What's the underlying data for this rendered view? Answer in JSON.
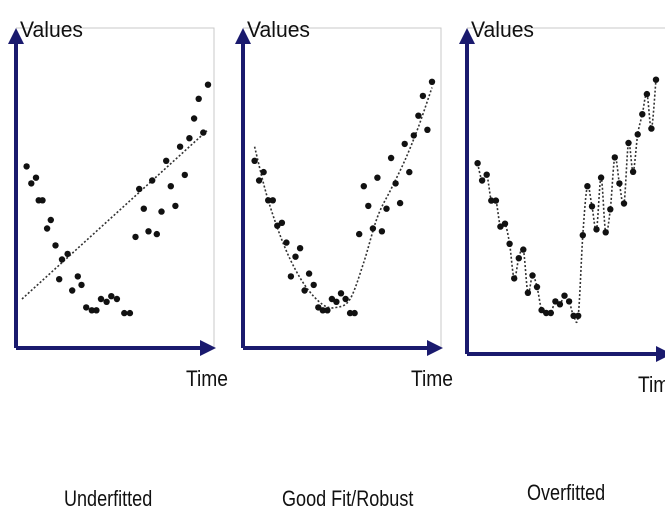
{
  "colors": {
    "axis": "#1a1a6e",
    "frame": "#c9c9c9",
    "point": "#111111",
    "fit_line": "#333333"
  },
  "chart_data": [
    {
      "type": "scatter",
      "caption": "Underfitted",
      "xlabel": "Time",
      "ylabel": "Values",
      "grid": false,
      "xlim": [
        0,
        20
      ],
      "ylim": [
        0,
        10
      ],
      "fit": "linear",
      "points": [
        [
          0.5,
          5.8
        ],
        [
          1,
          5.2
        ],
        [
          1.5,
          5.4
        ],
        [
          1.8,
          4.6
        ],
        [
          2.2,
          4.6
        ],
        [
          2.7,
          3.6
        ],
        [
          3.1,
          3.9
        ],
        [
          3.6,
          3.0
        ],
        [
          4,
          1.8
        ],
        [
          4.3,
          2.5
        ],
        [
          4.9,
          2.7
        ],
        [
          5.4,
          1.4
        ],
        [
          6,
          1.9
        ],
        [
          6.4,
          1.6
        ],
        [
          6.9,
          0.8
        ],
        [
          7.5,
          0.7
        ],
        [
          8,
          0.7
        ],
        [
          8.5,
          1.1
        ],
        [
          9.1,
          1.0
        ],
        [
          9.6,
          1.2
        ],
        [
          10.2,
          1.1
        ],
        [
          11,
          0.6
        ],
        [
          11.6,
          0.6
        ],
        [
          12.2,
          3.3
        ],
        [
          12.6,
          5.0
        ],
        [
          13.1,
          4.3
        ],
        [
          13.6,
          3.5
        ],
        [
          14,
          5.3
        ],
        [
          14.5,
          3.4
        ],
        [
          15,
          4.2
        ],
        [
          15.5,
          6.0
        ],
        [
          16,
          5.1
        ],
        [
          16.5,
          4.4
        ],
        [
          17,
          6.5
        ],
        [
          17.5,
          5.5
        ],
        [
          18,
          6.8
        ],
        [
          18.5,
          7.5
        ],
        [
          19,
          8.2
        ],
        [
          19.5,
          7.0
        ],
        [
          20,
          8.7
        ]
      ],
      "fit_points": [
        [
          0,
          1.1
        ],
        [
          20,
          7.1
        ]
      ]
    },
    {
      "type": "scatter",
      "caption": "Good Fit/Robust",
      "xlabel": "Time",
      "ylabel": "Values",
      "grid": false,
      "xlim": [
        0,
        20
      ],
      "ylim": [
        0,
        10
      ],
      "fit": "smooth",
      "points": [
        [
          0.5,
          6.0
        ],
        [
          1,
          5.3
        ],
        [
          1.5,
          5.6
        ],
        [
          2,
          4.6
        ],
        [
          2.5,
          4.6
        ],
        [
          3,
          3.7
        ],
        [
          3.5,
          3.8
        ],
        [
          4,
          3.1
        ],
        [
          4.5,
          1.9
        ],
        [
          5,
          2.6
        ],
        [
          5.5,
          2.9
        ],
        [
          6,
          1.4
        ],
        [
          6.5,
          2.0
        ],
        [
          7,
          1.6
        ],
        [
          7.5,
          0.8
        ],
        [
          8,
          0.7
        ],
        [
          8.5,
          0.7
        ],
        [
          9,
          1.1
        ],
        [
          9.5,
          1.0
        ],
        [
          10,
          1.3
        ],
        [
          10.5,
          1.1
        ],
        [
          11,
          0.6
        ],
        [
          11.5,
          0.6
        ],
        [
          12,
          3.4
        ],
        [
          12.5,
          5.1
        ],
        [
          13,
          4.4
        ],
        [
          13.5,
          3.6
        ],
        [
          14,
          5.4
        ],
        [
          14.5,
          3.5
        ],
        [
          15,
          4.3
        ],
        [
          15.5,
          6.1
        ],
        [
          16,
          5.2
        ],
        [
          16.5,
          4.5
        ],
        [
          17,
          6.6
        ],
        [
          17.5,
          5.6
        ],
        [
          18,
          6.9
        ],
        [
          18.5,
          7.6
        ],
        [
          19,
          8.3
        ],
        [
          19.5,
          7.1
        ],
        [
          20,
          8.8
        ]
      ],
      "fit_points": [
        [
          0.5,
          6.5
        ],
        [
          2,
          4.6
        ],
        [
          4,
          2.8
        ],
        [
          6,
          1.6
        ],
        [
          8,
          0.9
        ],
        [
          9.5,
          0.8
        ],
        [
          11,
          1.1
        ],
        [
          12.5,
          2.4
        ],
        [
          14,
          4.0
        ],
        [
          15.5,
          5.0
        ],
        [
          17,
          6.0
        ],
        [
          18.5,
          7.2
        ],
        [
          20,
          8.6
        ]
      ]
    },
    {
      "type": "scatter",
      "caption": "Overfitted",
      "xlabel": "Time",
      "ylabel": "Values",
      "grid": false,
      "xlim": [
        0,
        20
      ],
      "ylim": [
        0,
        10
      ],
      "fit": "interpolating",
      "points": [
        [
          0.5,
          6.0
        ],
        [
          1,
          5.4
        ],
        [
          1.5,
          5.6
        ],
        [
          2,
          4.7
        ],
        [
          2.5,
          4.7
        ],
        [
          3,
          3.8
        ],
        [
          3.5,
          3.9
        ],
        [
          4,
          3.2
        ],
        [
          4.5,
          2.0
        ],
        [
          5,
          2.7
        ],
        [
          5.5,
          3.0
        ],
        [
          6,
          1.5
        ],
        [
          6.5,
          2.1
        ],
        [
          7,
          1.7
        ],
        [
          7.5,
          0.9
        ],
        [
          8,
          0.8
        ],
        [
          8.5,
          0.8
        ],
        [
          9,
          1.2
        ],
        [
          9.5,
          1.1
        ],
        [
          10,
          1.4
        ],
        [
          10.5,
          1.2
        ],
        [
          11,
          0.7
        ],
        [
          11.5,
          0.7
        ],
        [
          12,
          3.5
        ],
        [
          12.5,
          5.2
        ],
        [
          13,
          4.5
        ],
        [
          13.5,
          3.7
        ],
        [
          14,
          5.5
        ],
        [
          14.5,
          3.6
        ],
        [
          15,
          4.4
        ],
        [
          15.5,
          6.2
        ],
        [
          16,
          5.3
        ],
        [
          16.5,
          4.6
        ],
        [
          17,
          6.7
        ],
        [
          17.5,
          5.7
        ],
        [
          18,
          7.0
        ],
        [
          18.5,
          7.7
        ],
        [
          19,
          8.4
        ],
        [
          19.5,
          7.2
        ],
        [
          20,
          8.9
        ]
      ]
    }
  ]
}
